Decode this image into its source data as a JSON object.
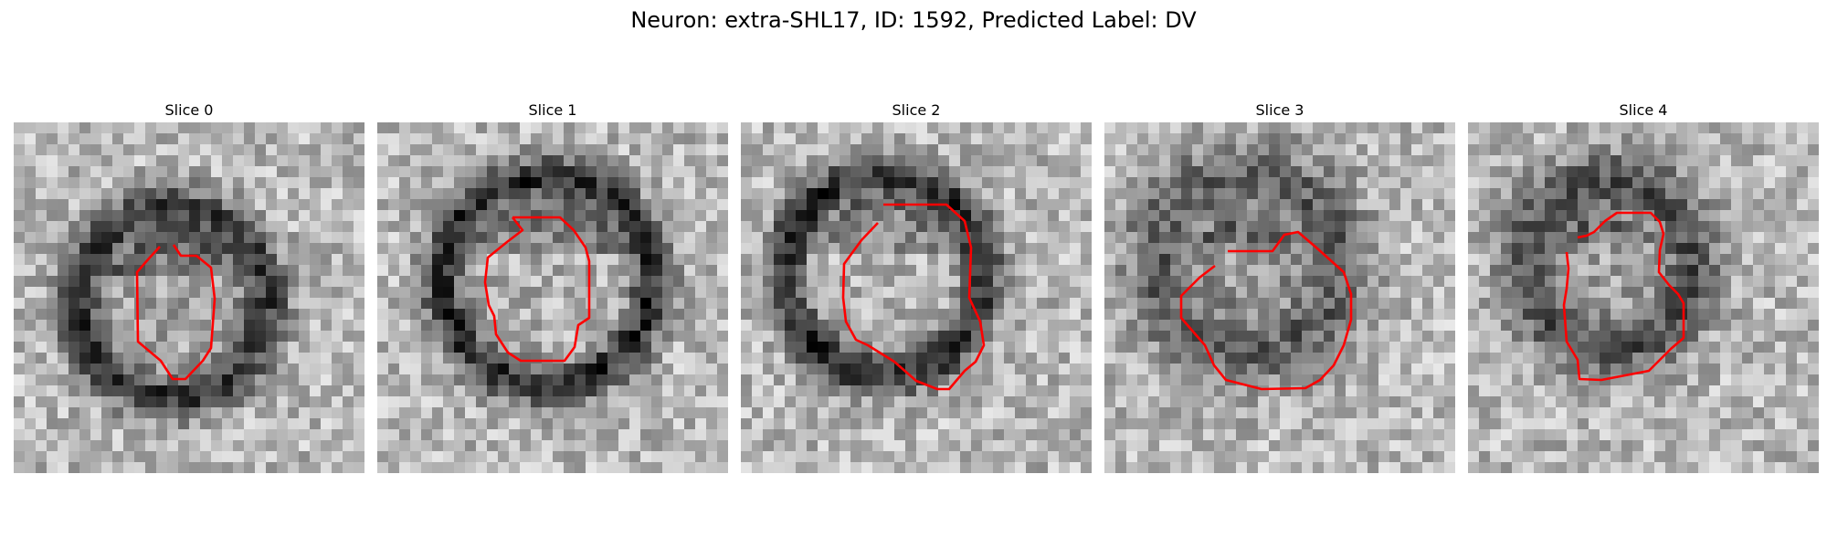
{
  "figure": {
    "title": "Neuron: extra-SHL17, ID: 1592, Predicted Label: DV",
    "contour_color": "#ff0000",
    "colormap": "gray"
  },
  "panels": [
    {
      "title": "Slice 0"
    },
    {
      "title": "Slice 1"
    },
    {
      "title": "Slice 2"
    },
    {
      "title": "Slice 3"
    },
    {
      "title": "Slice 4"
    }
  ]
}
